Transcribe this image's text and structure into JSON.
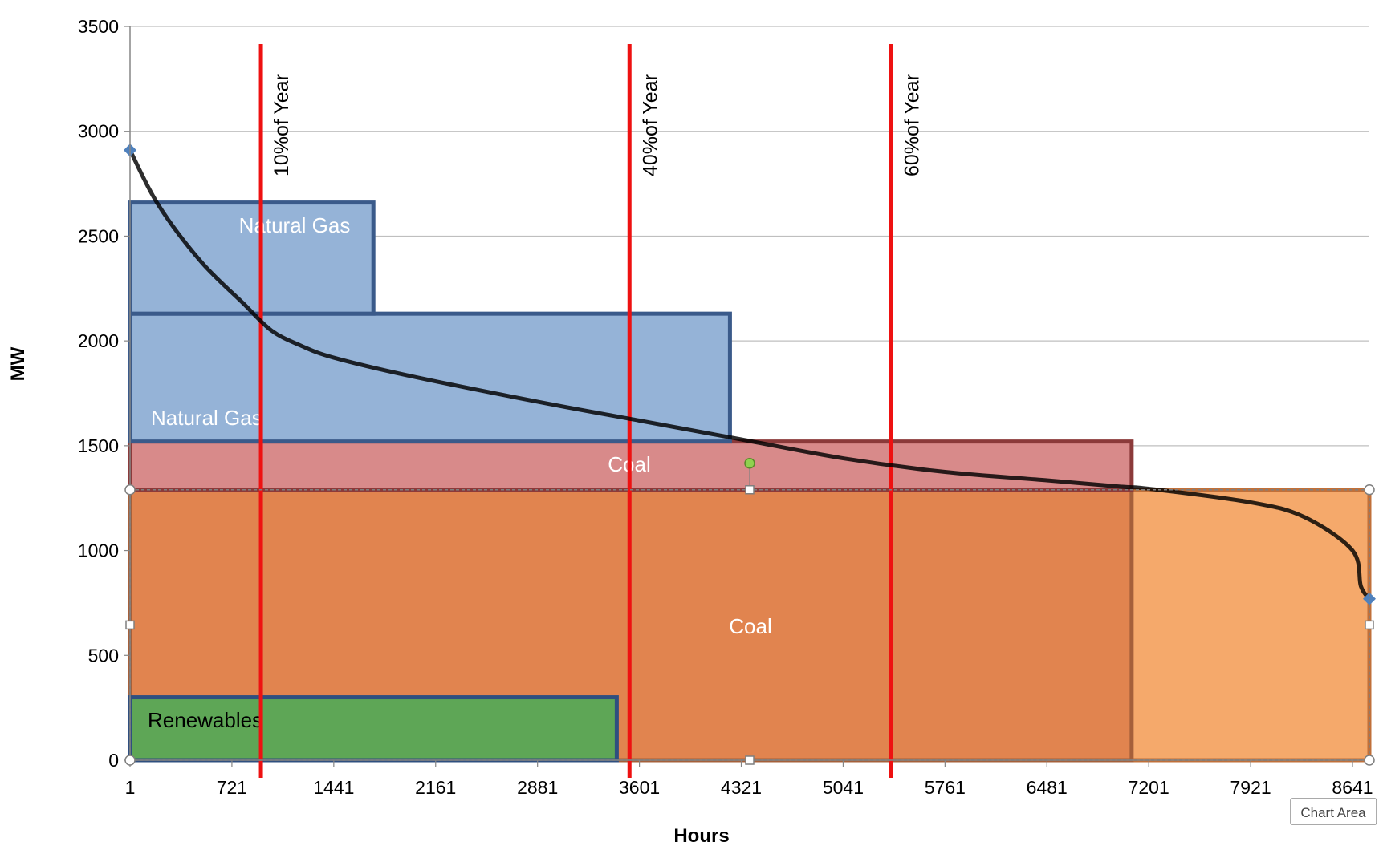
{
  "chart_data": {
    "type": "area",
    "xlabel": "Hours",
    "ylabel": "MW",
    "xlim": [
      1,
      8760
    ],
    "ylim": [
      0,
      3500
    ],
    "grid": true,
    "x_ticks": [
      "1",
      "721",
      "1441",
      "2161",
      "2881",
      "3601",
      "4321",
      "5041",
      "5761",
      "6481",
      "7201",
      "7921",
      "8641"
    ],
    "y_ticks": [
      "0",
      "500",
      "1000",
      "1500",
      "2000",
      "2500",
      "3000",
      "3500"
    ],
    "load_duration_curve": {
      "x": [
        1,
        200,
        500,
        800,
        1000,
        1200,
        1441,
        2000,
        2881,
        3601,
        4321,
        5041,
        5761,
        6481,
        7000,
        7201,
        7921,
        8300,
        8641,
        8700,
        8760
      ],
      "y": [
        2910,
        2650,
        2380,
        2180,
        2050,
        1980,
        1920,
        1830,
        1710,
        1620,
        1530,
        1440,
        1375,
        1335,
        1305,
        1295,
        1230,
        1160,
        1000,
        830,
        770
      ]
    },
    "blocks": [
      {
        "label": "Coal",
        "x_start": 1,
        "x_end": 8760,
        "y_bottom": 0,
        "y_top": 1290,
        "fill": "#F5A96B",
        "border": "#C0703A"
      },
      {
        "label": "",
        "x_start": 1,
        "x_end": 7080,
        "y_bottom": 0,
        "y_top": 1290,
        "fill": "#E1844F",
        "border": "#A5603A"
      },
      {
        "label": "Coal",
        "x_start": 1,
        "x_end": 7080,
        "y_bottom": 1290,
        "y_top": 1520,
        "fill": "#D88A8A",
        "border": "#8B3A3A"
      },
      {
        "label": "Natural Gas",
        "x_start": 1,
        "x_end": 4241,
        "y_bottom": 1520,
        "y_top": 2130,
        "fill": "#95B3D7",
        "border": "#3A5A8A"
      },
      {
        "label": "Natural Gas",
        "x_start": 1,
        "x_end": 1721,
        "y_bottom": 2130,
        "y_top": 2660,
        "fill": "#95B3D7",
        "border": "#3A5A8A"
      },
      {
        "label": "Renewables",
        "x_start": 1,
        "x_end": 3441,
        "y_bottom": 0,
        "y_top": 300,
        "fill": "#5EA656",
        "border": "#2F4F7F"
      }
    ],
    "vertical_lines": [
      {
        "x": 926,
        "label": "10%of Year"
      },
      {
        "x": 3531,
        "label": "40%of Year"
      },
      {
        "x": 5381,
        "label": "60%of Year"
      }
    ],
    "colors": {
      "line": "#000000",
      "vline": "#EE1111",
      "grid": "#BFBFBF",
      "marker": "#4F81BD"
    }
  },
  "tooltip": {
    "text": "Chart Area"
  }
}
